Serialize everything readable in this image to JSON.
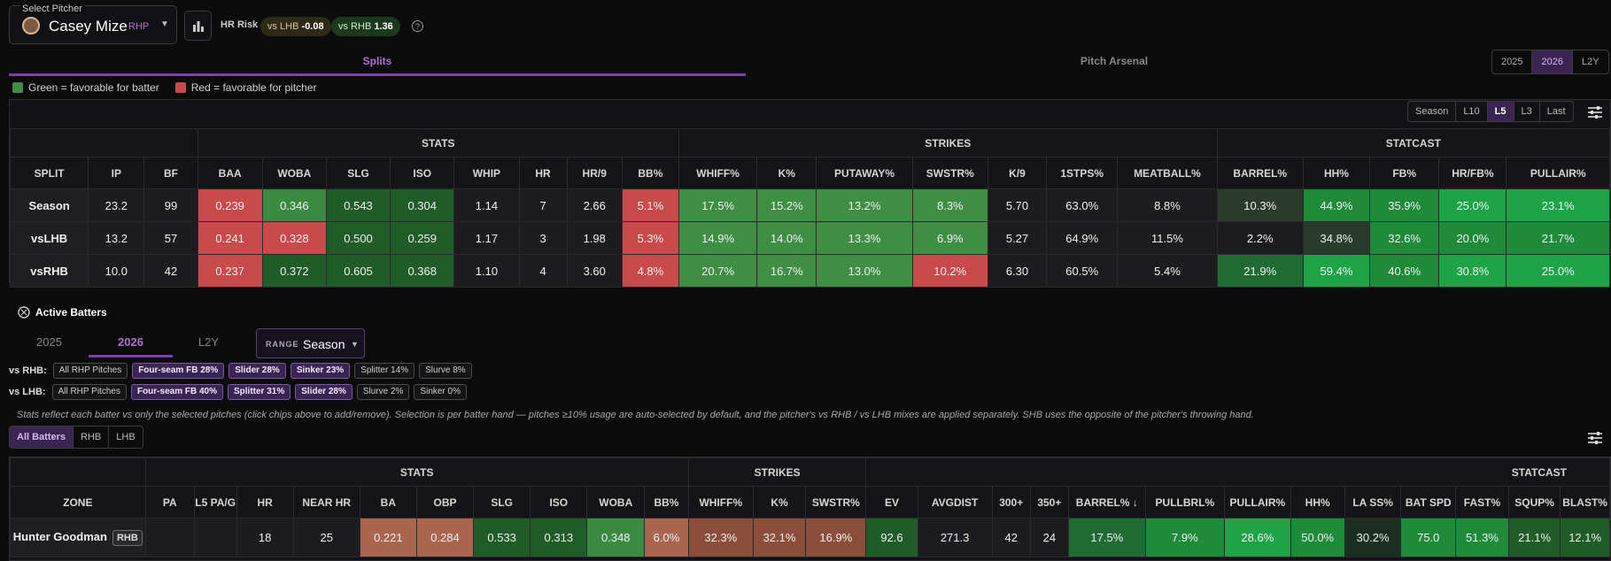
{
  "pitcher": {
    "label": "Select Pitcher",
    "name": "Casey Mize",
    "hand": "RHP"
  },
  "hr_risk": {
    "label": "HR Risk",
    "vs_lhb": "vs LHB",
    "vs_lhb_val": "-0.08",
    "vs_rhb": "vs RHB",
    "vs_rhb_val": "1.36",
    "help": "?"
  },
  "tabs": {
    "splits": "Splits",
    "arsenal": "Pitch Arsenal"
  },
  "years": [
    "2025",
    "2026",
    "L2Y"
  ],
  "legend": {
    "green": "Green = favorable for batter",
    "red": "Red = favorable for pitcher",
    "green_color": "#3e8f43",
    "red_color": "#c94a4a"
  },
  "range_seg": [
    "Season",
    "L10",
    "L5",
    "L3",
    "Last"
  ],
  "splits": {
    "groups": [
      "STATS",
      "STRIKES",
      "STATCAST"
    ],
    "headers": [
      "SPLIT",
      "IP",
      "BF",
      "BAA",
      "WOBA",
      "SLG",
      "ISO",
      "WHIP",
      "HR",
      "HR/9",
      "BB%",
      "WHIFF%",
      "K%",
      "PUTAWAY%",
      "SWSTR%",
      "K/9",
      "1STPS%",
      "MEATBALL%",
      "BARREL%",
      "HH%",
      "FB%",
      "HR/FB%",
      "PULLAIR%"
    ],
    "rows": [
      [
        "Season",
        "23.2",
        "99",
        "0.239",
        "0.346",
        "0.543",
        "0.304",
        "1.14",
        "7",
        "2.66",
        "5.1%",
        "17.5%",
        "15.2%",
        "13.2%",
        "8.3%",
        "5.70",
        "63.0%",
        "8.8%",
        "10.3%",
        "44.9%",
        "35.9%",
        "25.0%",
        "23.1%"
      ],
      [
        "vsLHB",
        "13.2",
        "57",
        "0.241",
        "0.328",
        "0.500",
        "0.259",
        "1.17",
        "3",
        "1.98",
        "5.3%",
        "14.9%",
        "14.0%",
        "13.3%",
        "6.9%",
        "5.27",
        "64.9%",
        "11.5%",
        "2.2%",
        "34.8%",
        "32.6%",
        "20.0%",
        "21.7%"
      ],
      [
        "vsRHB",
        "10.0",
        "42",
        "0.237",
        "0.372",
        "0.605",
        "0.368",
        "1.10",
        "4",
        "3.60",
        "4.8%",
        "20.7%",
        "16.7%",
        "13.0%",
        "10.2%",
        "6.30",
        "60.5%",
        "5.4%",
        "21.9%",
        "59.4%",
        "40.6%",
        "30.8%",
        "25.0%"
      ]
    ],
    "colors": [
      [
        "#1f1f22",
        "#1c1c1f",
        "#1c1c1f",
        "#c94a4a",
        "#3b8a41",
        "#1f5c28",
        "#1f5c28",
        "#1c1c1f",
        "#1c1c1f",
        "#1c1c1f",
        "#c94a4a",
        "#3e8f43",
        "#3e8f43",
        "#3e8f43",
        "#3e8f43",
        "#1c1c1f",
        "#1c1c1f",
        "#1c1c1f",
        "#2a3b2c",
        "#1e8b3a",
        "#1e8b3a",
        "#1ea347",
        "#1ea347"
      ],
      [
        "#1f1f22",
        "#1c1c1f",
        "#1c1c1f",
        "#c94a4a",
        "#c94a4a",
        "#1f5c28",
        "#1f5c28",
        "#1c1c1f",
        "#1c1c1f",
        "#1c1c1f",
        "#c94a4a",
        "#3e8f43",
        "#3e8f43",
        "#3e8f43",
        "#3e8f43",
        "#1c1c1f",
        "#1c1c1f",
        "#1c1c1f",
        "#1c1c1f",
        "#2a3b2c",
        "#1e8b3a",
        "#1e8b3a",
        "#1e8b3a"
      ],
      [
        "#1f1f22",
        "#1c1c1f",
        "#1c1c1f",
        "#c94a4a",
        "#1f5c28",
        "#1f5c28",
        "#1f5c28",
        "#1c1c1f",
        "#1c1c1f",
        "#1c1c1f",
        "#c94a4a",
        "#3e8f43",
        "#3e8f43",
        "#3e8f43",
        "#c94a4a",
        "#1c1c1f",
        "#1c1c1f",
        "#1c1c1f",
        "#1e6b34",
        "#1ea347",
        "#1e8b3a",
        "#1ea347",
        "#1ea347"
      ]
    ]
  },
  "active": {
    "title": "Active Batters",
    "years": [
      "2025",
      "2026",
      "L2Y"
    ],
    "range_label": "RANGE",
    "range_value": "Season",
    "rhb_label": "vs RHB:",
    "rhb_chips": [
      "All RHP Pitches",
      "Four-seam FB 28%",
      "Slider 28%",
      "Sinker 23%",
      "Splitter 14%",
      "Slurve 8%"
    ],
    "lhb_label": "vs LHB:",
    "lhb_chips": [
      "All RHP Pitches",
      "Four-seam FB 40%",
      "Splitter 31%",
      "Slider 28%",
      "Slurve 2%",
      "Sinker 0%"
    ],
    "note": "Stats reflect each batter vs only the selected pitches (click chips above to add/remove). Selection is per batter hand — pitches ≥10% usage are auto-selected by default, and the pitcher's vs RHB / vs LHB mixes are applied separately. SHB uses the opposite of the pitcher's throwing hand.",
    "filters": [
      "All Batters",
      "RHB",
      "LHB"
    ]
  },
  "batters": {
    "groups": [
      "STATS",
      "STRIKES",
      "STATCAST"
    ],
    "headers": [
      "ZONE",
      "PA",
      "L5 PA/G",
      "HR",
      "NEAR HR",
      "BA",
      "OBP",
      "SLG",
      "ISO",
      "WOBA",
      "BB%",
      "WHIFF%",
      "K%",
      "SWSTR%",
      "EV",
      "AVGDIST",
      "300+",
      "350+",
      "BARREL% ↓",
      "PULLBRL%",
      "PULLAIR%",
      "HH%",
      "LA SS%",
      "BAT SPD",
      "FAST%",
      "SQUP%",
      "BLAST%"
    ],
    "rows": [
      {
        "name": "Hunter Goodman",
        "hand": "RHB",
        "vals": [
          "18",
          "25",
          "0.221",
          "0.284",
          "0.533",
          "0.313",
          "0.348",
          "6.0%",
          "32.3%",
          "32.1%",
          "16.9%",
          "92.6",
          "271.3",
          "42",
          "24",
          "17.5%",
          "7.9%",
          "28.6%",
          "50.0%",
          "30.2%",
          "75.0",
          "51.3%",
          "21.1%",
          "12.1%"
        ]
      }
    ],
    "colors": [
      "#1c1c1f",
      "#1c1c1f",
      "#a9654d",
      "#a9654d",
      "#1f5c28",
      "#1f5c28",
      "#3b8a41",
      "#a9654d",
      "#8a4e3a",
      "#8a4e3a",
      "#8a4e3a",
      "#1f5c28",
      "#1c1c1f",
      "#1c1c1f",
      "#1c1c1f",
      "#1e6b34",
      "#1e8b3a",
      "#1ea347",
      "#1e8b3a",
      "#1c2e20",
      "#1e8b3a",
      "#1e8b3a",
      "#1f5c28",
      "#1f5c28"
    ]
  }
}
